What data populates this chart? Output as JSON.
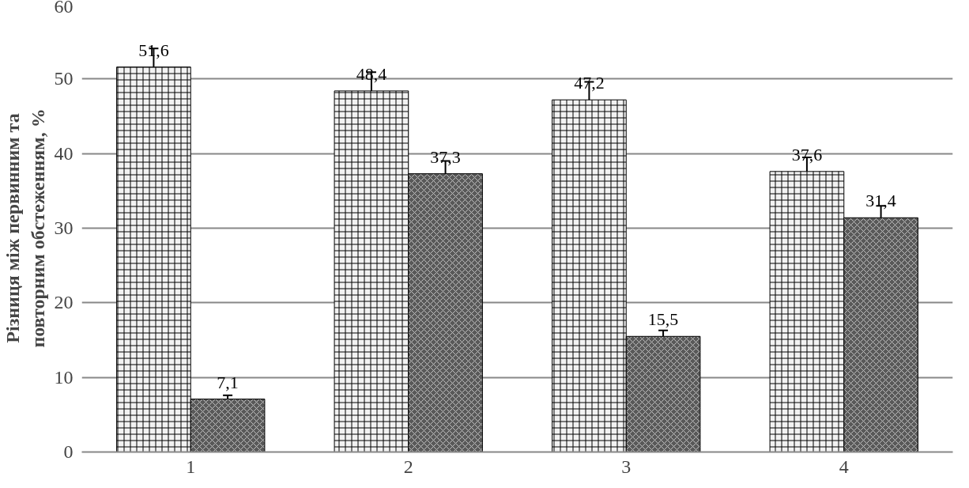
{
  "chart_data": {
    "type": "bar",
    "ylabel": "Різниця між первинним та\nповторним обстеженням, %",
    "categories": [
      "1",
      "2",
      "3",
      "4"
    ],
    "series": [
      {
        "color": "#f2f2f2",
        "values": [
          51.6,
          48.4,
          47.2,
          37.6
        ],
        "errors": [
          2.5,
          2.5,
          2.4,
          1.9
        ],
        "value_labels": [
          "51,6",
          "48,4",
          "47,2",
          "37,6"
        ]
      },
      {
        "color": "#595959",
        "values": [
          7.1,
          37.3,
          15.5,
          31.4
        ],
        "errors": [
          0.5,
          1.7,
          0.8,
          1.6
        ],
        "value_labels": [
          "7,1",
          "37,3",
          "15,5",
          "31,4"
        ]
      }
    ],
    "ylim": [
      0,
      60
    ],
    "yticks": [
      0,
      10,
      20,
      30,
      40,
      50,
      60
    ],
    "grid": "y"
  }
}
